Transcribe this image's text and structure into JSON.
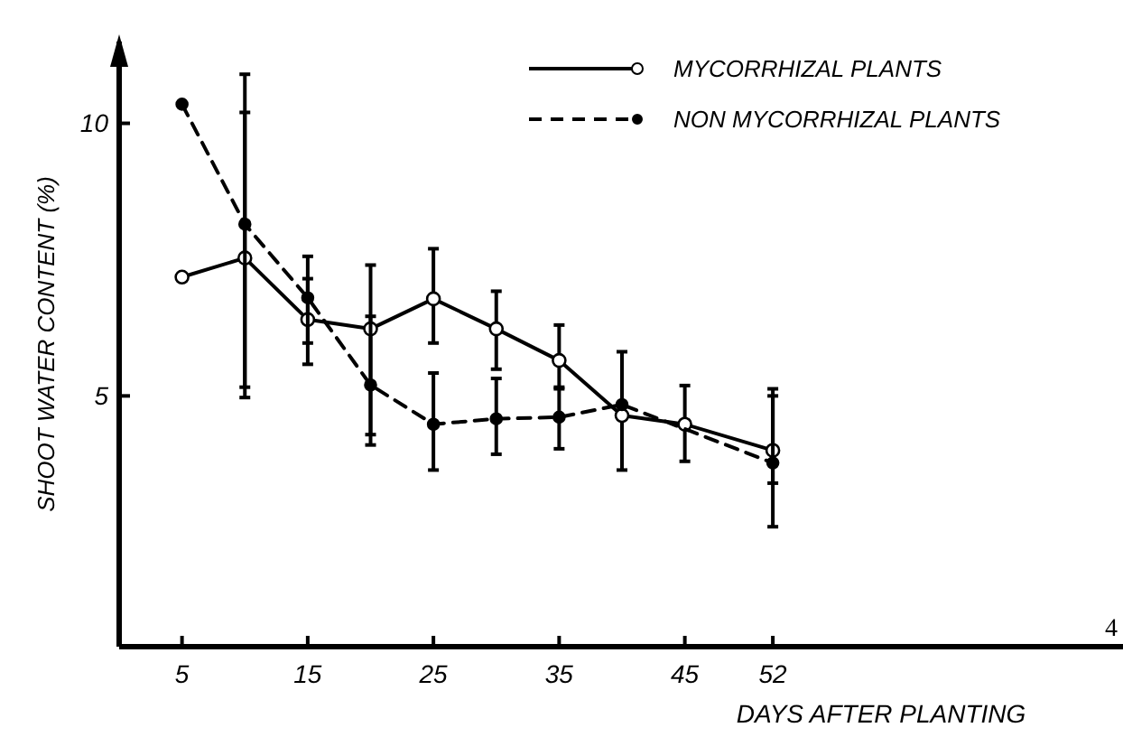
{
  "chart_data": {
    "type": "line",
    "xlabel": "DAYS AFTER PLANTING",
    "ylabel": "SHOOT WATER CONTENT (%)",
    "x": [
      5,
      10,
      15,
      20,
      25,
      30,
      35,
      40,
      45,
      52
    ],
    "xlim": [
      0,
      80
    ],
    "xticks": [
      5,
      15,
      25,
      35,
      45,
      52
    ],
    "ylim": [
      0.4,
      11.5
    ],
    "yticks": [
      5,
      10
    ],
    "grid": false,
    "legend": "top right",
    "marker": "circle",
    "series": [
      {
        "name": "MYCORRHIZAL PLANTS",
        "color": "#000000",
        "line_style": "solid",
        "values": [
          7.18,
          7.53,
          6.4,
          6.23,
          6.78,
          6.23,
          5.65,
          4.64,
          4.48,
          4.0
        ],
        "errors": [
          null,
          [
            5.16,
            10.9
          ],
          [
            5.58,
            7.56
          ],
          [
            4.29,
            7.4
          ],
          [
            5.97,
            7.7
          ],
          [
            5.49,
            6.92
          ],
          [
            5.13,
            6.3
          ],
          [
            3.64,
            5.81
          ],
          [
            3.8,
            5.19
          ],
          [
            3.4,
            5.13
          ]
        ]
      },
      {
        "name": "NON MYCORRHIZAL PLANTS",
        "color": "#000000",
        "line_style": "dashed",
        "values": [
          10.35,
          8.15,
          6.8,
          5.2,
          4.48,
          4.58,
          4.61,
          4.84,
          null,
          3.77
        ],
        "errors": [
          null,
          [
            4.97,
            10.2
          ],
          [
            5.97,
            7.15
          ],
          [
            4.1,
            6.46
          ],
          [
            3.64,
            5.42
          ],
          [
            3.93,
            5.32
          ],
          [
            4.03,
            5.16
          ],
          null,
          null,
          [
            2.6,
            5.0
          ]
        ]
      }
    ],
    "annotations": [
      "4"
    ]
  }
}
